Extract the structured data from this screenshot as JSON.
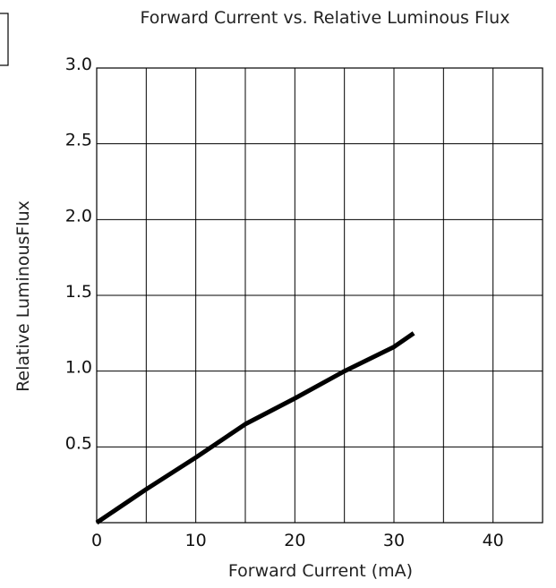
{
  "chart_data": {
    "type": "line",
    "title": "Forward Current vs. Relative Luminous Flux",
    "xlabel": "Forward Current (mA)",
    "ylabel": "Relative LuminousFlux",
    "xlim": [
      0,
      45
    ],
    "ylim": [
      0,
      3.0
    ],
    "x_ticks": [
      0,
      10,
      20,
      30,
      40
    ],
    "x_tick_labels": [
      "0",
      "10",
      "20",
      "30",
      "40"
    ],
    "y_ticks": [
      0.5,
      1.0,
      1.5,
      2.0,
      2.5,
      3.0
    ],
    "y_tick_labels": [
      "0.5",
      "1.0",
      "1.5",
      "2.0",
      "2.5",
      "3.0"
    ],
    "grid": true,
    "series": [
      {
        "x": [
          0,
          5,
          10,
          15,
          20,
          25,
          30,
          32
        ],
        "y": [
          0,
          0.22,
          0.43,
          0.65,
          0.82,
          1.0,
          1.16,
          1.25
        ]
      }
    ]
  }
}
